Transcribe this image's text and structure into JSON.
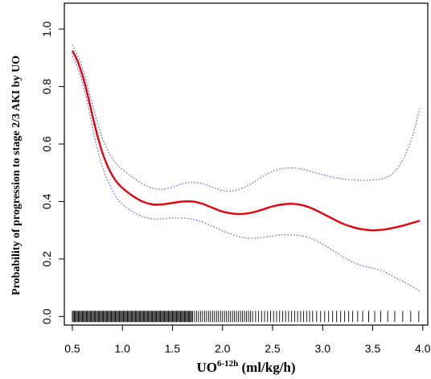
{
  "chart_data": {
    "type": "line",
    "title": "",
    "xlabel_main": "UO",
    "xlabel_sup": "6-12h",
    "xlabel_unit": " (ml/kg/h)",
    "ylabel": "Probability of progression to stage 2/3 AKI by UO",
    "xlim": [
      0.42,
      4.05
    ],
    "ylim": [
      -0.03,
      1.09
    ],
    "x_ticks": [
      0.5,
      1.0,
      1.5,
      2.0,
      2.5,
      3.0,
      3.5,
      4.0
    ],
    "x_tick_labels": [
      "0.5",
      "1.0",
      "1.5",
      "2.0",
      "2.5",
      "3.0",
      "3.5",
      "4.0"
    ],
    "y_ticks": [
      0.0,
      0.2,
      0.4,
      0.6,
      0.8,
      1.0
    ],
    "y_tick_labels": [
      "0.0",
      "0.2",
      "0.4",
      "0.6",
      "0.8",
      "1.0"
    ],
    "grid": false,
    "colors": {
      "estimate": "#e8000b",
      "ci": "#6a6ae8",
      "rug": "#000000"
    },
    "series": [
      {
        "role": "estimate",
        "x": [
          0.5,
          0.55,
          0.6,
          0.65,
          0.7,
          0.75,
          0.8,
          0.85,
          0.9,
          0.95,
          1.0,
          1.1,
          1.2,
          1.3,
          1.4,
          1.5,
          1.6,
          1.7,
          1.8,
          1.9,
          2.0,
          2.1,
          2.2,
          2.3,
          2.4,
          2.5,
          2.6,
          2.7,
          2.8,
          2.9,
          3.0,
          3.1,
          3.2,
          3.3,
          3.4,
          3.5,
          3.6,
          3.7,
          3.8,
          3.9,
          3.97
        ],
        "y": [
          0.925,
          0.89,
          0.84,
          0.775,
          0.7,
          0.63,
          0.57,
          0.525,
          0.49,
          0.465,
          0.447,
          0.42,
          0.4,
          0.39,
          0.39,
          0.395,
          0.4,
          0.4,
          0.392,
          0.378,
          0.365,
          0.358,
          0.357,
          0.362,
          0.372,
          0.383,
          0.39,
          0.392,
          0.387,
          0.375,
          0.358,
          0.34,
          0.323,
          0.311,
          0.303,
          0.3,
          0.302,
          0.308,
          0.316,
          0.326,
          0.333
        ]
      },
      {
        "role": "ci-upper",
        "x": [
          0.5,
          0.55,
          0.6,
          0.65,
          0.7,
          0.75,
          0.8,
          0.85,
          0.9,
          0.95,
          1.0,
          1.1,
          1.2,
          1.3,
          1.4,
          1.5,
          1.6,
          1.7,
          1.8,
          1.9,
          2.0,
          2.1,
          2.2,
          2.3,
          2.4,
          2.5,
          2.6,
          2.7,
          2.8,
          2.9,
          3.0,
          3.1,
          3.2,
          3.3,
          3.4,
          3.5,
          3.6,
          3.7,
          3.8,
          3.9,
          3.97
        ],
        "y": [
          0.945,
          0.91,
          0.865,
          0.805,
          0.74,
          0.675,
          0.62,
          0.58,
          0.55,
          0.528,
          0.512,
          0.485,
          0.462,
          0.447,
          0.442,
          0.45,
          0.462,
          0.466,
          0.462,
          0.45,
          0.438,
          0.437,
          0.447,
          0.465,
          0.487,
          0.505,
          0.515,
          0.517,
          0.512,
          0.503,
          0.494,
          0.485,
          0.479,
          0.475,
          0.474,
          0.475,
          0.48,
          0.498,
          0.545,
          0.63,
          0.725
        ]
      },
      {
        "role": "ci-lower",
        "x": [
          0.5,
          0.55,
          0.6,
          0.65,
          0.7,
          0.75,
          0.8,
          0.85,
          0.9,
          0.95,
          1.0,
          1.1,
          1.2,
          1.3,
          1.4,
          1.5,
          1.6,
          1.7,
          1.8,
          1.9,
          2.0,
          2.1,
          2.2,
          2.3,
          2.4,
          2.5,
          2.6,
          2.7,
          2.8,
          2.9,
          3.0,
          3.1,
          3.2,
          3.3,
          3.4,
          3.5,
          3.6,
          3.7,
          3.8,
          3.9,
          3.97
        ],
        "y": [
          0.905,
          0.868,
          0.815,
          0.745,
          0.66,
          0.585,
          0.522,
          0.475,
          0.44,
          0.41,
          0.39,
          0.365,
          0.348,
          0.34,
          0.34,
          0.342,
          0.342,
          0.338,
          0.328,
          0.314,
          0.298,
          0.285,
          0.275,
          0.272,
          0.275,
          0.28,
          0.284,
          0.284,
          0.28,
          0.27,
          0.252,
          0.23,
          0.208,
          0.189,
          0.176,
          0.168,
          0.158,
          0.14,
          0.122,
          0.103,
          0.088
        ]
      }
    ],
    "rug_x": [
      0.5,
      0.51,
      0.52,
      0.53,
      0.54,
      0.55,
      0.56,
      0.57,
      0.58,
      0.59,
      0.6,
      0.61,
      0.62,
      0.63,
      0.64,
      0.65,
      0.66,
      0.67,
      0.68,
      0.69,
      0.7,
      0.71,
      0.72,
      0.73,
      0.74,
      0.75,
      0.76,
      0.77,
      0.78,
      0.79,
      0.8,
      0.81,
      0.82,
      0.83,
      0.84,
      0.85,
      0.86,
      0.87,
      0.88,
      0.89,
      0.9,
      0.91,
      0.92,
      0.93,
      0.94,
      0.95,
      0.96,
      0.97,
      0.98,
      0.99,
      1.0,
      1.01,
      1.02,
      1.03,
      1.04,
      1.05,
      1.06,
      1.07,
      1.08,
      1.09,
      1.1,
      1.11,
      1.12,
      1.13,
      1.14,
      1.15,
      1.16,
      1.17,
      1.18,
      1.19,
      1.2,
      1.21,
      1.22,
      1.23,
      1.24,
      1.25,
      1.26,
      1.27,
      1.28,
      1.29,
      1.3,
      1.31,
      1.32,
      1.33,
      1.34,
      1.35,
      1.36,
      1.37,
      1.38,
      1.39,
      1.4,
      1.41,
      1.42,
      1.43,
      1.44,
      1.45,
      1.46,
      1.47,
      1.48,
      1.49,
      1.5,
      1.51,
      1.52,
      1.53,
      1.54,
      1.55,
      1.56,
      1.57,
      1.58,
      1.59,
      1.6,
      1.61,
      1.62,
      1.63,
      1.64,
      1.65,
      1.66,
      1.67,
      1.68,
      1.69,
      1.7,
      1.72,
      1.74,
      1.76,
      1.78,
      1.8,
      1.82,
      1.84,
      1.86,
      1.88,
      1.9,
      1.92,
      1.94,
      1.96,
      1.98,
      2.0,
      2.02,
      2.04,
      2.06,
      2.08,
      2.1,
      2.12,
      2.14,
      2.16,
      2.18,
      2.2,
      2.22,
      2.24,
      2.26,
      2.28,
      2.3,
      2.33,
      2.36,
      2.39,
      2.42,
      2.45,
      2.48,
      2.51,
      2.54,
      2.57,
      2.6,
      2.63,
      2.66,
      2.69,
      2.72,
      2.75,
      2.78,
      2.81,
      2.84,
      2.87,
      2.9,
      2.94,
      2.98,
      3.02,
      3.06,
      3.1,
      3.14,
      3.18,
      3.22,
      3.26,
      3.3,
      3.35,
      3.4,
      3.46,
      3.52,
      3.58,
      3.65,
      3.72,
      3.8,
      3.88,
      3.96
    ]
  }
}
